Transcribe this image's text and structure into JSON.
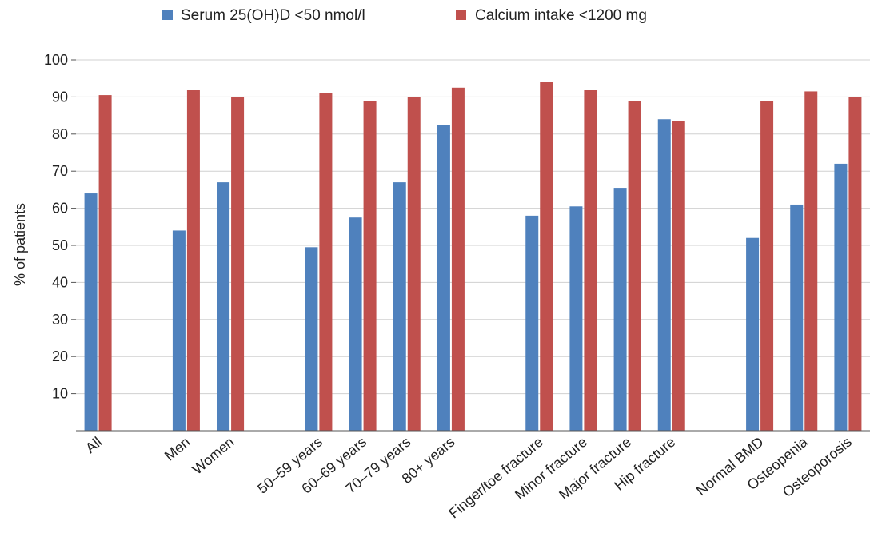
{
  "chart_data": {
    "type": "bar",
    "title": "",
    "xlabel": "",
    "ylabel": "% of patients",
    "ylim": [
      0,
      100
    ],
    "yticks": [
      10,
      20,
      30,
      40,
      50,
      60,
      70,
      80,
      90,
      100
    ],
    "grid": true,
    "legend_position": "top",
    "group_sizes": [
      1,
      2,
      4,
      4,
      3
    ],
    "categories": [
      "All",
      "Men",
      "Women",
      "50–59 years",
      "60–69 years",
      "70–79 years",
      "80+ years",
      "Finger/toe fracture",
      "Minor fracture",
      "Major fracture",
      "Hip fracture",
      "Normal BMD",
      "Osteopenia",
      "Osteoporosis"
    ],
    "series": [
      {
        "name": "Serum 25(OH)D <50 nmol/l",
        "color": "#4f81bd",
        "values": [
          64,
          54,
          67,
          49.5,
          57.5,
          67,
          82.5,
          58,
          60.5,
          65.5,
          84,
          52,
          61,
          72
        ]
      },
      {
        "name": "Calcium intake <1200 mg",
        "color": "#c0504d",
        "values": [
          90.5,
          92,
          90,
          91,
          89,
          90,
          92.5,
          94,
          92,
          89,
          83.5,
          89,
          91.5,
          90
        ]
      }
    ]
  }
}
